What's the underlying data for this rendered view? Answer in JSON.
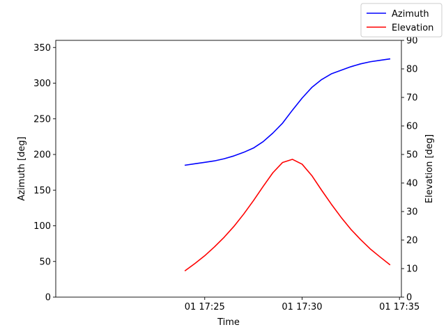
{
  "chart_data": {
    "type": "line",
    "xlabel": "Time",
    "xlim_minutes": [
      17.35,
      35.1
    ],
    "x_ticks": [
      {
        "value": 25,
        "label": "01 17:25"
      },
      {
        "value": 30,
        "label": "01 17:30"
      },
      {
        "value": 35,
        "label": "01 17:35"
      }
    ],
    "y_left": {
      "label": "Azimuth [deg]",
      "lim": [
        0,
        360
      ],
      "ticks": [
        0,
        50,
        100,
        150,
        200,
        250,
        300,
        350
      ]
    },
    "y_right": {
      "label": "Elevation [deg]",
      "lim": [
        0,
        90
      ],
      "ticks": [
        0,
        10,
        20,
        30,
        40,
        50,
        60,
        70,
        80,
        90
      ]
    },
    "legend": {
      "placement": "top-right, outside plot"
    },
    "series": [
      {
        "name": "Azimuth",
        "axis": "left",
        "color": "#0000ff",
        "x": [
          24.0,
          24.5,
          25.0,
          25.5,
          26.0,
          26.5,
          27.0,
          27.5,
          28.0,
          28.5,
          29.0,
          29.5,
          30.0,
          30.5,
          31.0,
          31.5,
          32.0,
          32.5,
          33.0,
          33.5,
          34.0,
          34.5
        ],
        "values": [
          185,
          187,
          189,
          191,
          194,
          198,
          203,
          209,
          218,
          230,
          244,
          262,
          279,
          294,
          305,
          313,
          318,
          323,
          327,
          330,
          332,
          334
        ]
      },
      {
        "name": "Elevation",
        "axis": "right",
        "color": "#ff0000",
        "x": [
          24.0,
          24.5,
          25.0,
          25.5,
          26.0,
          26.5,
          27.0,
          27.5,
          28.0,
          28.5,
          29.0,
          29.5,
          30.0,
          30.5,
          31.0,
          31.5,
          32.0,
          32.5,
          33.0,
          33.5,
          34.0,
          34.5
        ],
        "values": [
          9.3,
          11.8,
          14.5,
          17.6,
          21.0,
          24.8,
          29.1,
          33.8,
          38.8,
          43.6,
          47.2,
          48.3,
          46.6,
          42.6,
          37.5,
          32.6,
          28.0,
          23.8,
          20.2,
          16.9,
          14.1,
          11.4
        ]
      }
    ]
  }
}
